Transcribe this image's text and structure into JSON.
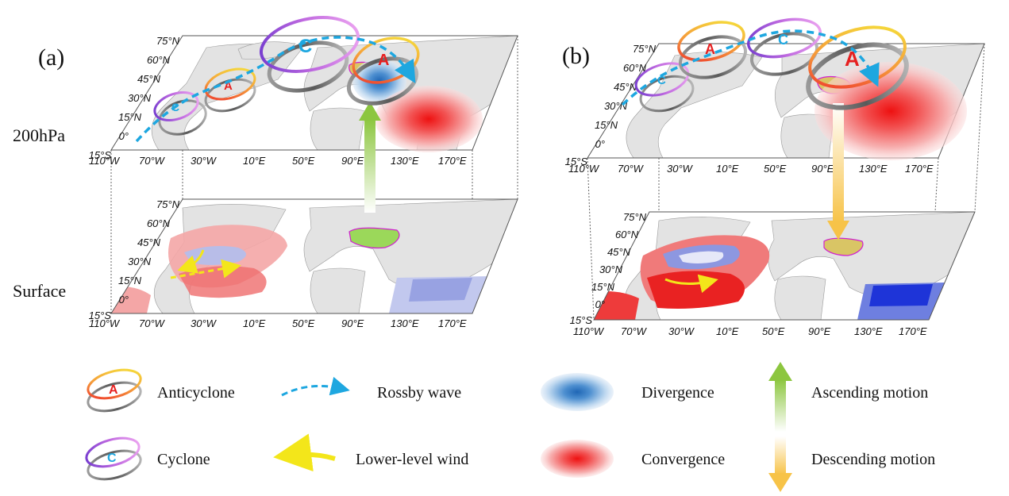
{
  "panels": [
    {
      "label": "(a)",
      "upper_level": "200hPa",
      "lower_level": "Surface"
    },
    {
      "label": "(b)",
      "upper_level": "",
      "lower_level": ""
    }
  ],
  "lat_ticks": [
    "75°N",
    "60°N",
    "45°N",
    "30°N",
    "15°N",
    "0°",
    "15°S"
  ],
  "lon_ticks": [
    "110°W",
    "70°W",
    "30°W",
    "10°E",
    "50°E",
    "90°E",
    "130°E",
    "170°E"
  ],
  "system_letters": {
    "anticyclone": "A",
    "cyclone": "C"
  },
  "legend": {
    "anticyclone": "Anticyclone",
    "cyclone": "Cyclone",
    "rossby": "Rossby wave",
    "wind": "Lower-level wind",
    "divergence": "Divergence",
    "convergence": "Convergence",
    "ascending": "Ascending motion",
    "descending": "Descending motion"
  },
  "colors": {
    "land": "#e3e3e3",
    "rossby": "#1ea7e0",
    "wind": "#f3e61a",
    "divergence": "#1f6fc0",
    "convergence": "#ee1c1c",
    "ascending": "#8cc63f",
    "descending": "#f7c348",
    "region_fill_a": "#9bd85a",
    "region_fill_b": "#d9c565",
    "region_edge": "#d020d0"
  }
}
